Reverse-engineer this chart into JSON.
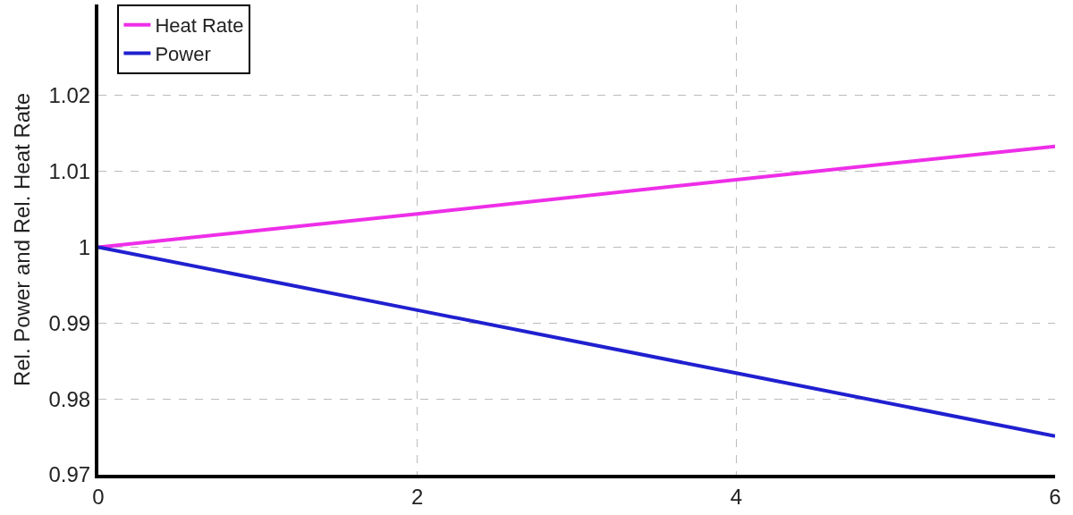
{
  "chart_data": {
    "type": "line",
    "ylabel": "Rel. Power and Rel. Heat Rate",
    "x": [
      0,
      2,
      4,
      6
    ],
    "series": [
      {
        "name": "Heat Rate",
        "color": "#ee2ee8",
        "values": [
          1.0,
          1.0044,
          1.0089,
          1.0133
        ]
      },
      {
        "name": "Power",
        "color": "#2020d0",
        "values": [
          1.0,
          0.9917,
          0.9834,
          0.9751
        ]
      }
    ],
    "xlim": [
      0,
      6
    ],
    "xticks": [
      0,
      2,
      4,
      6
    ],
    "ylim": [
      0.97,
      1.032
    ],
    "yticks": [
      0.97,
      0.98,
      0.99,
      1,
      1.01,
      1.02
    ],
    "grid": true,
    "legend": "top left",
    "line_style": "solid",
    "marker": "none"
  }
}
